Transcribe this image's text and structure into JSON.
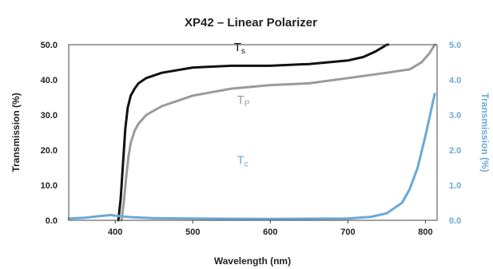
{
  "chart_data": {
    "type": "line",
    "title": "XP42 – Linear Polarizer",
    "xlabel": "Wavelength (nm)",
    "ylabel": "Transmission (%)",
    "ylabel_right": "Transmission (%)",
    "xlim": [
      340,
      815
    ],
    "ylim": [
      0,
      50
    ],
    "ylim_right": [
      0,
      5
    ],
    "x_ticks": [
      "400",
      "500",
      "600",
      "700",
      "800"
    ],
    "y_ticks": [
      "0.0",
      "10.0",
      "20.0",
      "30.0",
      "40.0",
      "50.0"
    ],
    "y_ticks_right": [
      "0.0",
      "1.0",
      "2.0",
      "3.0",
      "4.0",
      "5.0"
    ],
    "grid": false,
    "series": [
      {
        "name": "Ts",
        "axis": "left",
        "color": "#111111",
        "x": [
          404,
          407,
          410,
          413,
          416,
          420,
          425,
          430,
          440,
          460,
          500,
          550,
          600,
          650,
          700,
          720,
          735,
          745,
          750,
          752
        ],
        "y": [
          0,
          6,
          16,
          26,
          32,
          35.5,
          37.5,
          39,
          40.5,
          42,
          43.5,
          44,
          44,
          44.5,
          45.5,
          46.5,
          48,
          49.3,
          50,
          50
        ]
      },
      {
        "name": "Tp",
        "axis": "left",
        "color": "#9a9a9a",
        "x": [
          408,
          411,
          414,
          417,
          420,
          425,
          430,
          440,
          460,
          500,
          550,
          600,
          650,
          700,
          750,
          780,
          795,
          805,
          812
        ],
        "y": [
          0,
          5,
          12,
          18,
          22,
          25.5,
          27.5,
          30,
          32.5,
          35.5,
          37.5,
          38.5,
          39,
          40.5,
          42,
          43,
          45,
          47.5,
          50
        ]
      },
      {
        "name": "Tc",
        "axis": "right",
        "color": "#6aa9d8",
        "x": [
          340,
          360,
          380,
          395,
          400,
          420,
          450,
          500,
          600,
          700,
          730,
          750,
          770,
          780,
          790,
          800,
          805,
          810,
          812
        ],
        "y": [
          0.05,
          0.07,
          0.12,
          0.15,
          0.13,
          0.09,
          0.06,
          0.05,
          0.04,
          0.05,
          0.1,
          0.2,
          0.5,
          0.9,
          1.5,
          2.4,
          2.9,
          3.4,
          3.6
        ]
      }
    ],
    "labels": [
      {
        "main": "T",
        "sub": "s",
        "series": "Ts",
        "x": 553,
        "y": 48.2
      },
      {
        "main": "T",
        "sub": "P",
        "series": "Tp",
        "x": 557,
        "y": 33.2
      },
      {
        "main": "T",
        "sub": "c",
        "series": "Tc",
        "x": 557,
        "y": 1.6
      }
    ]
  }
}
